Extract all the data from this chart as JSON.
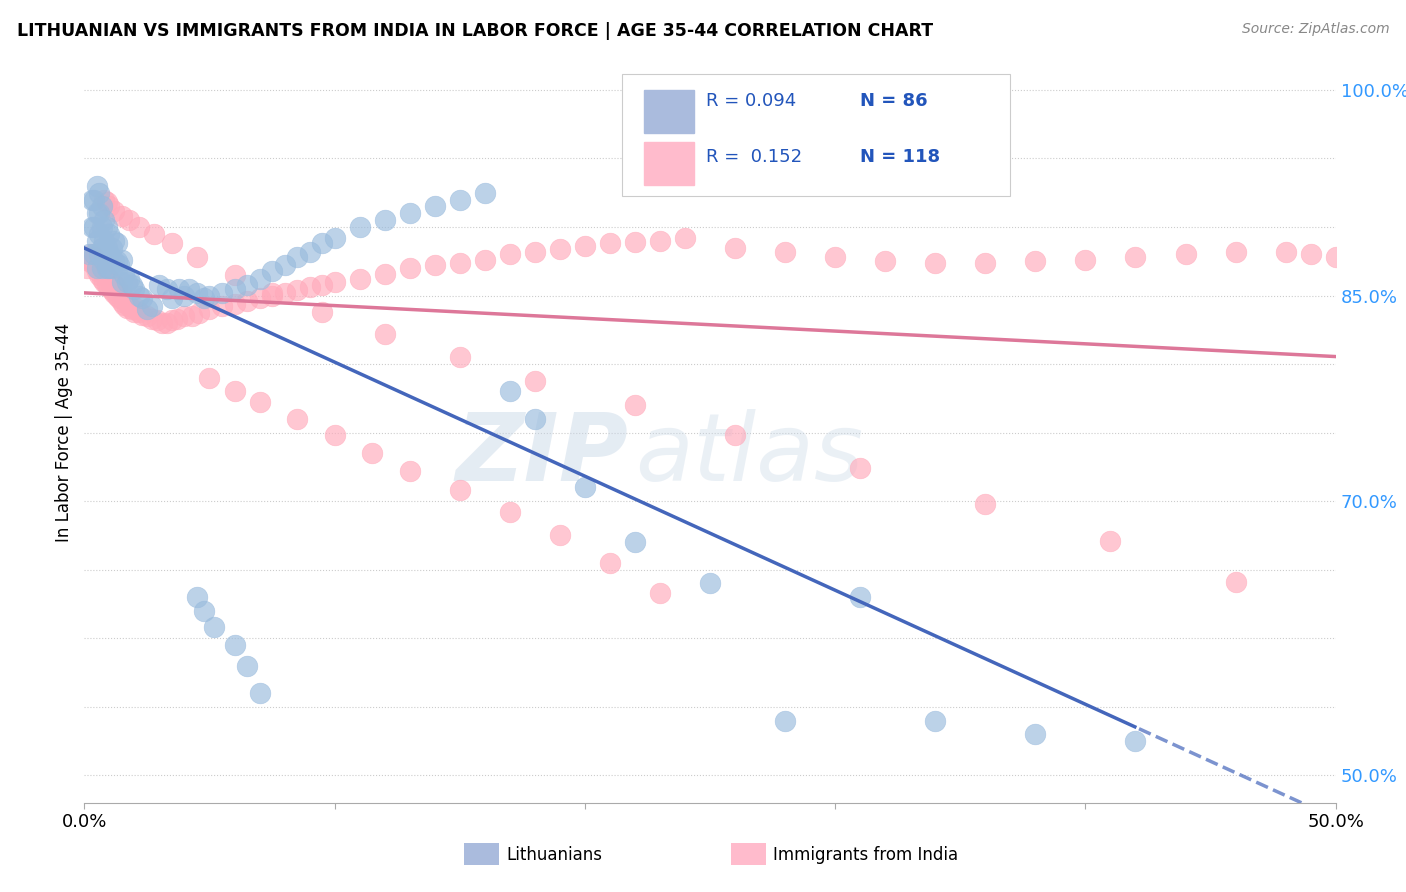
{
  "title": "LITHUANIAN VS IMMIGRANTS FROM INDIA IN LABOR FORCE | AGE 35-44 CORRELATION CHART",
  "source": "Source: ZipAtlas.com",
  "ylabel": "In Labor Force | Age 35-44",
  "xlim": [
    0.0,
    0.5
  ],
  "ylim": [
    0.48,
    1.02
  ],
  "blue_fill": "#99BBDD",
  "blue_edge": "#99BBDD",
  "pink_fill": "#FFAABB",
  "pink_edge": "#FFAABB",
  "blue_line_color": "#4466BB",
  "pink_line_color": "#DD7799",
  "R_blue": 0.094,
  "N_blue": 86,
  "R_pink": 0.152,
  "N_pink": 118,
  "legend_label_blue": "Lithuanians",
  "legend_label_pink": "Immigrants from India",
  "watermark_zip": "ZIP",
  "watermark_atlas": "atlas",
  "blue_x": [
    0.002,
    0.003,
    0.003,
    0.004,
    0.004,
    0.004,
    0.005,
    0.005,
    0.005,
    0.005,
    0.006,
    0.006,
    0.006,
    0.006,
    0.007,
    0.007,
    0.007,
    0.007,
    0.008,
    0.008,
    0.008,
    0.009,
    0.009,
    0.009,
    0.01,
    0.01,
    0.01,
    0.011,
    0.011,
    0.012,
    0.012,
    0.013,
    0.013,
    0.014,
    0.015,
    0.015,
    0.016,
    0.017,
    0.018,
    0.019,
    0.02,
    0.022,
    0.023,
    0.025,
    0.027,
    0.03,
    0.033,
    0.035,
    0.038,
    0.04,
    0.042,
    0.045,
    0.048,
    0.05,
    0.055,
    0.06,
    0.065,
    0.07,
    0.075,
    0.08,
    0.085,
    0.09,
    0.095,
    0.1,
    0.11,
    0.12,
    0.13,
    0.14,
    0.15,
    0.16,
    0.17,
    0.18,
    0.2,
    0.22,
    0.25,
    0.28,
    0.31,
    0.34,
    0.38,
    0.42,
    0.045,
    0.048,
    0.052,
    0.06,
    0.065,
    0.07
  ],
  "blue_y": [
    0.88,
    0.9,
    0.92,
    0.88,
    0.9,
    0.92,
    0.87,
    0.89,
    0.91,
    0.93,
    0.88,
    0.895,
    0.91,
    0.925,
    0.87,
    0.885,
    0.9,
    0.915,
    0.875,
    0.89,
    0.905,
    0.87,
    0.885,
    0.9,
    0.87,
    0.88,
    0.895,
    0.87,
    0.885,
    0.875,
    0.89,
    0.875,
    0.888,
    0.872,
    0.876,
    0.86,
    0.865,
    0.86,
    0.862,
    0.858,
    0.855,
    0.85,
    0.848,
    0.84,
    0.842,
    0.858,
    0.855,
    0.848,
    0.855,
    0.85,
    0.855,
    0.852,
    0.848,
    0.85,
    0.852,
    0.855,
    0.858,
    0.862,
    0.868,
    0.872,
    0.878,
    0.882,
    0.888,
    0.892,
    0.9,
    0.905,
    0.91,
    0.915,
    0.92,
    0.925,
    0.78,
    0.76,
    0.71,
    0.67,
    0.64,
    0.54,
    0.63,
    0.54,
    0.53,
    0.525,
    0.63,
    0.62,
    0.608,
    0.595,
    0.58,
    0.56
  ],
  "pink_x": [
    0.001,
    0.002,
    0.003,
    0.003,
    0.004,
    0.004,
    0.005,
    0.005,
    0.006,
    0.006,
    0.007,
    0.007,
    0.008,
    0.008,
    0.009,
    0.009,
    0.01,
    0.01,
    0.011,
    0.011,
    0.012,
    0.012,
    0.013,
    0.013,
    0.014,
    0.015,
    0.015,
    0.016,
    0.017,
    0.018,
    0.019,
    0.02,
    0.021,
    0.022,
    0.023,
    0.025,
    0.027,
    0.029,
    0.031,
    0.033,
    0.035,
    0.037,
    0.04,
    0.043,
    0.046,
    0.05,
    0.055,
    0.06,
    0.065,
    0.07,
    0.075,
    0.08,
    0.085,
    0.09,
    0.095,
    0.1,
    0.11,
    0.12,
    0.13,
    0.14,
    0.15,
    0.16,
    0.17,
    0.18,
    0.19,
    0.2,
    0.21,
    0.22,
    0.23,
    0.24,
    0.26,
    0.28,
    0.3,
    0.32,
    0.34,
    0.36,
    0.38,
    0.4,
    0.42,
    0.44,
    0.46,
    0.48,
    0.49,
    0.5,
    0.008,
    0.009,
    0.01,
    0.012,
    0.015,
    0.018,
    0.022,
    0.028,
    0.035,
    0.045,
    0.06,
    0.075,
    0.095,
    0.12,
    0.15,
    0.18,
    0.22,
    0.26,
    0.31,
    0.36,
    0.41,
    0.46,
    0.05,
    0.06,
    0.07,
    0.085,
    0.1,
    0.115,
    0.13,
    0.15,
    0.17,
    0.19,
    0.21,
    0.23
  ],
  "pink_y": [
    0.87,
    0.875,
    0.875,
    0.88,
    0.872,
    0.878,
    0.868,
    0.874,
    0.865,
    0.87,
    0.862,
    0.868,
    0.86,
    0.866,
    0.858,
    0.864,
    0.856,
    0.862,
    0.854,
    0.86,
    0.852,
    0.858,
    0.85,
    0.856,
    0.848,
    0.845,
    0.851,
    0.843,
    0.841,
    0.842,
    0.84,
    0.838,
    0.84,
    0.838,
    0.836,
    0.835,
    0.833,
    0.832,
    0.83,
    0.83,
    0.832,
    0.833,
    0.835,
    0.835,
    0.837,
    0.84,
    0.842,
    0.844,
    0.846,
    0.848,
    0.85,
    0.852,
    0.854,
    0.856,
    0.858,
    0.86,
    0.862,
    0.866,
    0.87,
    0.872,
    0.874,
    0.876,
    0.88,
    0.882,
    0.884,
    0.886,
    0.888,
    0.889,
    0.89,
    0.892,
    0.885,
    0.882,
    0.878,
    0.875,
    0.874,
    0.874,
    0.875,
    0.876,
    0.878,
    0.88,
    0.882,
    0.882,
    0.88,
    0.878,
    0.92,
    0.918,
    0.915,
    0.912,
    0.908,
    0.905,
    0.9,
    0.895,
    0.888,
    0.878,
    0.865,
    0.852,
    0.838,
    0.822,
    0.805,
    0.788,
    0.77,
    0.748,
    0.724,
    0.698,
    0.671,
    0.641,
    0.79,
    0.78,
    0.772,
    0.76,
    0.748,
    0.735,
    0.722,
    0.708,
    0.692,
    0.675,
    0.655,
    0.633
  ]
}
